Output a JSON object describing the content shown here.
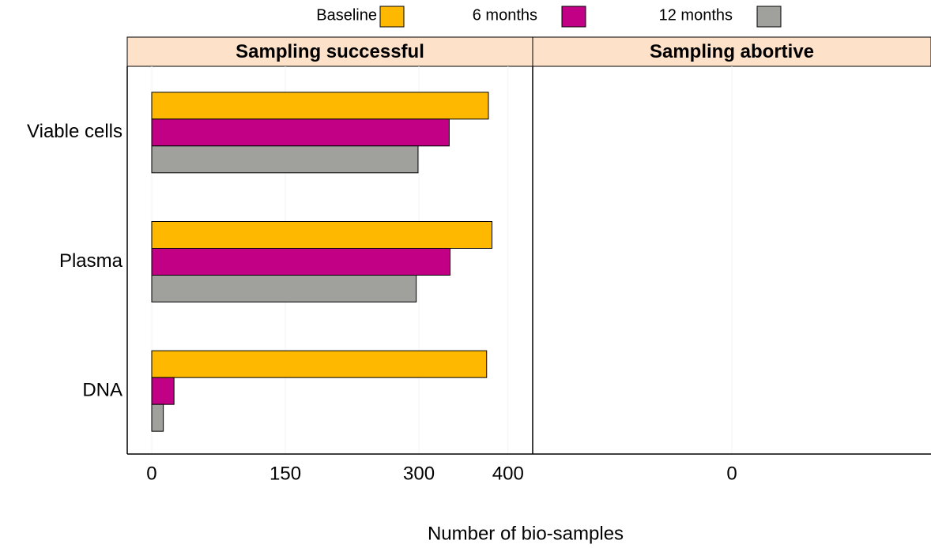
{
  "chart_data": {
    "type": "bar",
    "orientation": "horizontal",
    "x_label": "Number of bio-samples",
    "categories": [
      "Viable cells",
      "Plasma",
      "DNA"
    ],
    "series": [
      {
        "name": "Baseline",
        "color": "#FFB800"
      },
      {
        "name": "6 months",
        "color": "#C20085"
      },
      {
        "name": "12 months",
        "color": "#A0A19C"
      }
    ],
    "panels": [
      {
        "title": "Sampling successful",
        "xlim": [
          -27.5,
          427.7
        ],
        "xticks": [
          0,
          150,
          300,
          400
        ],
        "values": [
          [
            378,
            382,
            376
          ],
          [
            334,
            335,
            25
          ],
          [
            299,
            297,
            13
          ]
        ]
      },
      {
        "title": "Sampling abortive",
        "xlim": [
          -1,
          1
        ],
        "xticks": [
          0
        ],
        "values": [
          [
            0,
            0,
            0
          ],
          [
            0,
            0,
            0
          ],
          [
            0,
            0,
            0
          ]
        ]
      }
    ]
  }
}
